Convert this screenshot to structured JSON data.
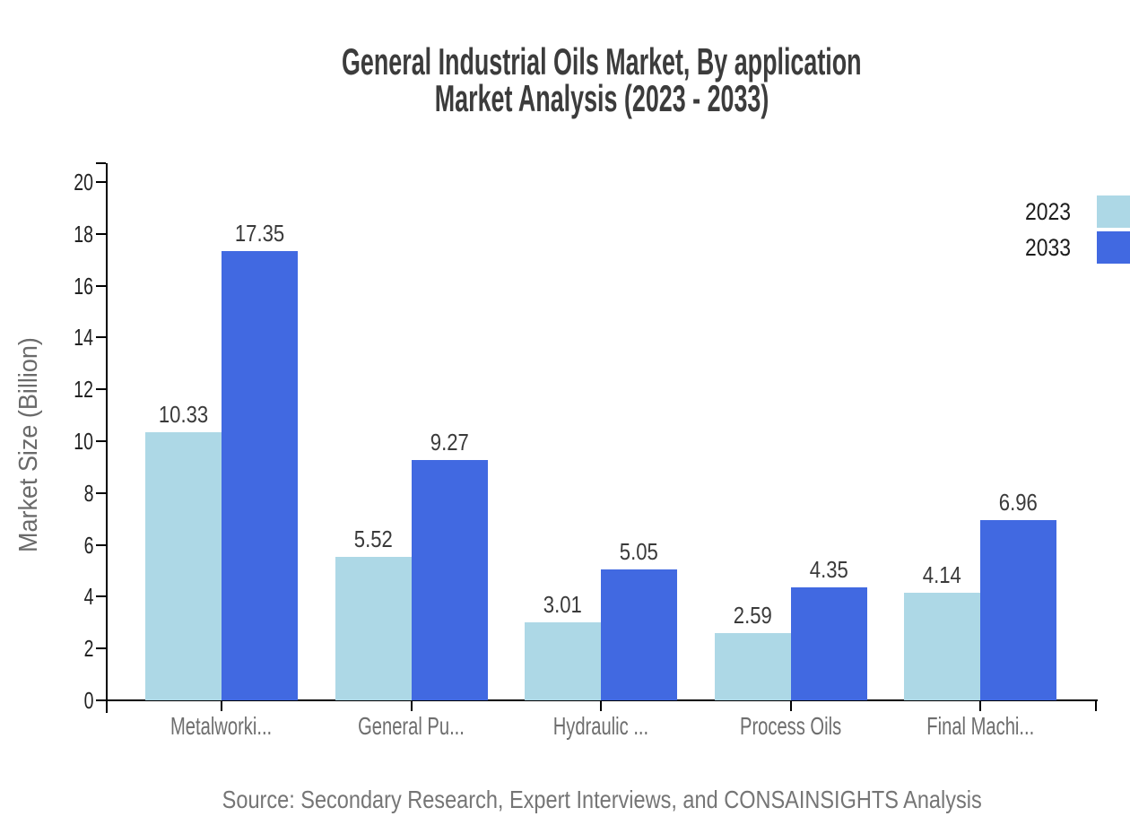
{
  "chart_data": {
    "type": "bar",
    "title": "General Industrial Oils Market, By application",
    "subtitle": "Market Analysis (2023 - 2033)",
    "ylabel": "Market Size (Billion)",
    "ylim": [
      0,
      20
    ],
    "ytick_step": 2,
    "grid": false,
    "legend_position": "top-right",
    "categories": [
      "Metalworki...",
      "General Pu...",
      "Hydraulic ...",
      "Process Oils",
      "Final Machi..."
    ],
    "series": [
      {
        "name": "2023",
        "color": "#ADD8E6",
        "values": [
          10.33,
          5.52,
          3.01,
          2.59,
          4.14
        ]
      },
      {
        "name": "2033",
        "color": "#4169E1",
        "values": [
          17.35,
          9.27,
          5.05,
          4.35,
          6.96
        ]
      }
    ],
    "source": "Source: Secondary Research, Expert Interviews, and CONSAINSIGHTS Analysis",
    "colors": {
      "axis": "#000000",
      "title_text": "#3c3c3c",
      "tick_label_text": "#222222",
      "category_label_text": "#6e6e6e",
      "value_label_text": "#3a3a3a",
      "legend_text": "#1d1d1d",
      "source_text": "#757575"
    }
  }
}
